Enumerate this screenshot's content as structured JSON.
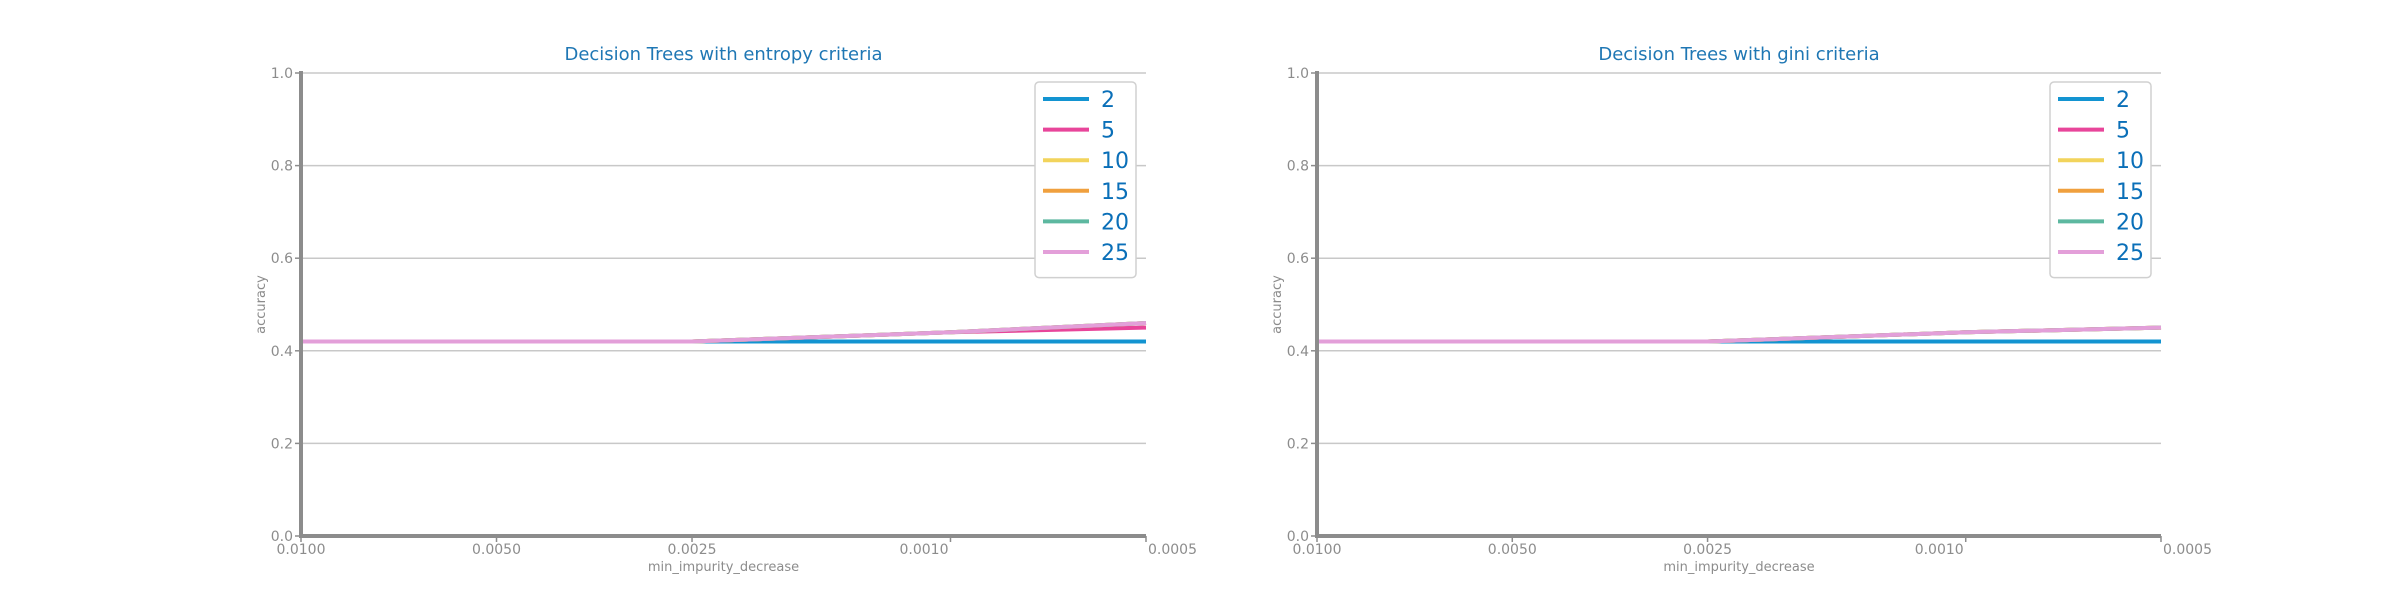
{
  "chart_data": [
    {
      "type": "line",
      "title": "Decision Trees with entropy criteria",
      "xlabel": "min_impurity_decrease",
      "ylabel": "accuracy",
      "x": [
        0.01,
        0.005,
        0.0025,
        0.001,
        0.0005
      ],
      "x_tick_labels": [
        "0.0100",
        "0.0050",
        "0.0025",
        "0.0010",
        "0.0005"
      ],
      "ylim": [
        0.0,
        1.0
      ],
      "y_ticks": [
        0.0,
        0.2,
        0.4,
        0.6,
        0.8,
        1.0
      ],
      "y_tick_labels": [
        "0.0",
        "0.2",
        "0.4",
        "0.6",
        "0.8",
        "1.0"
      ],
      "grid": true,
      "legend_position": "top-right",
      "series": [
        {
          "name": "2",
          "color": "#1394d1",
          "values": [
            0.42,
            0.42,
            0.42,
            0.42,
            0.42
          ]
        },
        {
          "name": "5",
          "color": "#e8459a",
          "values": [
            0.42,
            0.42,
            0.42,
            0.44,
            0.45
          ]
        },
        {
          "name": "10",
          "color": "#f2d45c",
          "values": [
            0.42,
            0.42,
            0.42,
            0.44,
            0.46
          ]
        },
        {
          "name": "15",
          "color": "#f0a03e",
          "values": [
            0.42,
            0.42,
            0.42,
            0.44,
            0.46
          ]
        },
        {
          "name": "20",
          "color": "#5db8a0",
          "values": [
            0.42,
            0.42,
            0.42,
            0.44,
            0.46
          ]
        },
        {
          "name": "25",
          "color": "#e39fd9",
          "values": [
            0.42,
            0.42,
            0.42,
            0.44,
            0.46
          ]
        }
      ]
    },
    {
      "type": "line",
      "title": "Decision Trees with gini criteria",
      "xlabel": "min_impurity_decrease",
      "ylabel": "accuracy",
      "x": [
        0.01,
        0.005,
        0.0025,
        0.001,
        0.0005
      ],
      "x_tick_labels": [
        "0.0100",
        "0.0050",
        "0.0025",
        "0.0010",
        "0.0005"
      ],
      "ylim": [
        0.0,
        1.0
      ],
      "y_ticks": [
        0.0,
        0.2,
        0.4,
        0.6,
        0.8,
        1.0
      ],
      "y_tick_labels": [
        "0.0",
        "0.2",
        "0.4",
        "0.6",
        "0.8",
        "1.0"
      ],
      "grid": true,
      "legend_position": "top-right",
      "series": [
        {
          "name": "2",
          "color": "#1394d1",
          "values": [
            0.42,
            0.42,
            0.42,
            0.42,
            0.42
          ]
        },
        {
          "name": "5",
          "color": "#e8459a",
          "values": [
            0.42,
            0.42,
            0.42,
            0.44,
            0.45
          ]
        },
        {
          "name": "10",
          "color": "#f2d45c",
          "values": [
            0.42,
            0.42,
            0.42,
            0.44,
            0.45
          ]
        },
        {
          "name": "15",
          "color": "#f0a03e",
          "values": [
            0.42,
            0.42,
            0.42,
            0.44,
            0.45
          ]
        },
        {
          "name": "20",
          "color": "#5db8a0",
          "values": [
            0.42,
            0.42,
            0.42,
            0.44,
            0.45
          ]
        },
        {
          "name": "25",
          "color": "#e39fd9",
          "values": [
            0.42,
            0.42,
            0.42,
            0.44,
            0.45
          ]
        }
      ]
    }
  ]
}
